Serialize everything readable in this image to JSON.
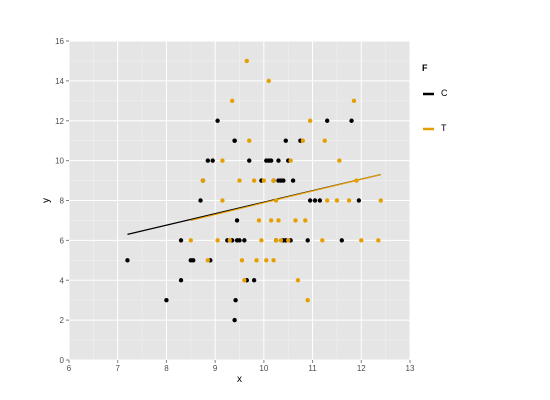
{
  "chart_data": {
    "type": "scatter",
    "title": "",
    "xlabel": "x",
    "ylabel": "y",
    "xlim": [
      6,
      13
    ],
    "ylim": [
      0,
      16
    ],
    "xticks": [
      6,
      7,
      8,
      9,
      10,
      11,
      12,
      13
    ],
    "yticks": [
      0,
      2,
      4,
      6,
      8,
      10,
      12,
      14,
      16
    ],
    "grid": true,
    "legend": {
      "title": "F",
      "placement": "right",
      "entries": [
        {
          "label": "C",
          "color": "#000000"
        },
        {
          "label": "T",
          "color": "#E69F00"
        }
      ]
    },
    "series": [
      {
        "name": "C",
        "color": "#000000",
        "points": [
          [
            7.2,
            5
          ],
          [
            8.0,
            3
          ],
          [
            8.3,
            4
          ],
          [
            8.3,
            6
          ],
          [
            8.5,
            5
          ],
          [
            8.55,
            5
          ],
          [
            8.7,
            8
          ],
          [
            8.75,
            9
          ],
          [
            8.85,
            10
          ],
          [
            8.9,
            5
          ],
          [
            8.95,
            10
          ],
          [
            9.05,
            12
          ],
          [
            9.25,
            6
          ],
          [
            9.35,
            6
          ],
          [
            9.4,
            11
          ],
          [
            9.4,
            11
          ],
          [
            9.4,
            2
          ],
          [
            9.42,
            3
          ],
          [
            9.45,
            7
          ],
          [
            9.45,
            6
          ],
          [
            9.5,
            6
          ],
          [
            9.6,
            6
          ],
          [
            9.65,
            4
          ],
          [
            9.7,
            10
          ],
          [
            9.8,
            4
          ],
          [
            9.95,
            9
          ],
          [
            10.05,
            10
          ],
          [
            10.1,
            10
          ],
          [
            10.15,
            10
          ],
          [
            10.2,
            9
          ],
          [
            10.25,
            6
          ],
          [
            10.3,
            9
          ],
          [
            10.3,
            10
          ],
          [
            10.35,
            9
          ],
          [
            10.4,
            9
          ],
          [
            10.4,
            6
          ],
          [
            10.45,
            6
          ],
          [
            10.45,
            11
          ],
          [
            10.5,
            10
          ],
          [
            10.55,
            6
          ],
          [
            10.6,
            9
          ],
          [
            10.75,
            11
          ],
          [
            10.9,
            6
          ],
          [
            10.95,
            8
          ],
          [
            11.05,
            8
          ],
          [
            11.15,
            8
          ],
          [
            11.3,
            12
          ],
          [
            11.6,
            6
          ],
          [
            11.8,
            12
          ],
          [
            11.95,
            8
          ]
        ],
        "trend": {
          "x": [
            7.2,
            12.4
          ],
          "y": [
            6.3,
            9.3
          ]
        }
      },
      {
        "name": "T",
        "color": "#E69F00",
        "points": [
          [
            8.5,
            6
          ],
          [
            8.75,
            9
          ],
          [
            8.85,
            5
          ],
          [
            9.05,
            6
          ],
          [
            9.15,
            10
          ],
          [
            9.15,
            8
          ],
          [
            9.3,
            6
          ],
          [
            9.35,
            13
          ],
          [
            9.5,
            9
          ],
          [
            9.55,
            5
          ],
          [
            9.6,
            4
          ],
          [
            9.65,
            15
          ],
          [
            9.7,
            11
          ],
          [
            9.8,
            9
          ],
          [
            9.85,
            5
          ],
          [
            9.9,
            7
          ],
          [
            9.95,
            6
          ],
          [
            10.0,
            9
          ],
          [
            10.05,
            5
          ],
          [
            10.1,
            14
          ],
          [
            10.15,
            7
          ],
          [
            10.2,
            9
          ],
          [
            10.2,
            5
          ],
          [
            10.25,
            6
          ],
          [
            10.25,
            8
          ],
          [
            10.3,
            7
          ],
          [
            10.35,
            6
          ],
          [
            10.5,
            6
          ],
          [
            10.55,
            10
          ],
          [
            10.65,
            7
          ],
          [
            10.7,
            4
          ],
          [
            10.8,
            11
          ],
          [
            10.85,
            7
          ],
          [
            10.9,
            3
          ],
          [
            10.95,
            12
          ],
          [
            11.2,
            6
          ],
          [
            11.25,
            11
          ],
          [
            11.3,
            8
          ],
          [
            11.5,
            8
          ],
          [
            11.55,
            10
          ],
          [
            11.75,
            8
          ],
          [
            11.85,
            13
          ],
          [
            11.9,
            9
          ],
          [
            12.0,
            6
          ],
          [
            12.35,
            6
          ],
          [
            12.4,
            8
          ]
        ],
        "trend": {
          "x": [
            8.5,
            12.4
          ],
          "y": [
            7.0,
            9.3
          ]
        }
      }
    ]
  }
}
